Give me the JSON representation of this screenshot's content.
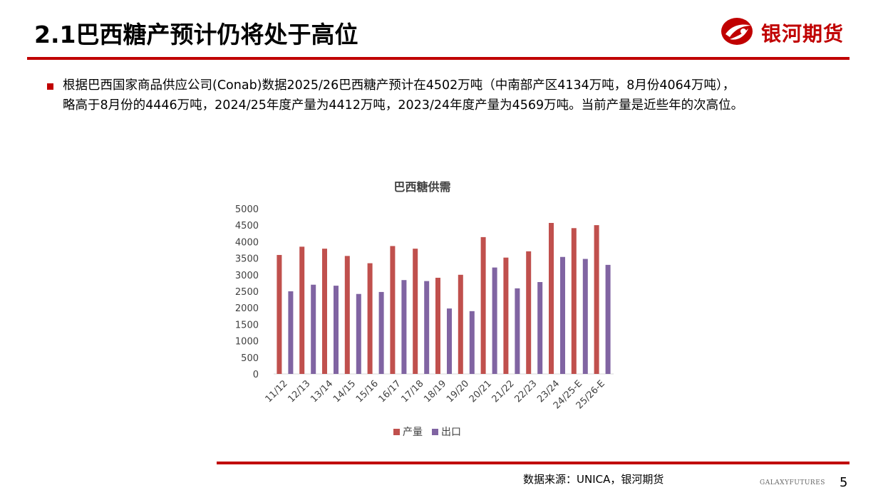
{
  "header": {
    "title": "2.1巴西糖产预计仍将处于高位",
    "logo_text": "银河期货"
  },
  "body": {
    "line1": "根据巴西国家商品供应公司(Conab)数据2025/26巴西糖产预计在4502万吨（中南部产区4134万吨，8月份4064万吨），",
    "line2": "略高于8月份的4446万吨，2024/25年度产量为4412万吨，2023/24年度产量为4569万吨。当前产量是近些年的次高位。"
  },
  "footer": {
    "source": "数据来源：UNICA，银河期货",
    "brand": "GALAXYFUTURES",
    "page": "5"
  },
  "colors": {
    "accent": "#c00000",
    "production": "#c0504d",
    "export": "#8064a2"
  },
  "chart_data": {
    "type": "bar",
    "title": "巴西糖供需",
    "categories": [
      "11/12",
      "12/13",
      "13/14",
      "14/15",
      "15/16",
      "16/17",
      "17/18",
      "18/19",
      "19/20",
      "20/21",
      "21/22",
      "22/23",
      "23/24",
      "24/25-E",
      "25/26-E"
    ],
    "series": [
      {
        "name": "产量",
        "values": [
          3600,
          3850,
          3790,
          3570,
          3350,
          3870,
          3790,
          2910,
          3000,
          4140,
          3520,
          3710,
          4569,
          4412,
          4502
        ]
      },
      {
        "name": "出口",
        "values": [
          2500,
          2700,
          2670,
          2420,
          2480,
          2840,
          2810,
          1980,
          1900,
          3220,
          2590,
          2780,
          3540,
          3480,
          3300
        ]
      }
    ],
    "yticks": [
      0,
      500,
      1000,
      1500,
      2000,
      2500,
      3000,
      3500,
      4000,
      4500,
      5000
    ],
    "ylim": [
      0,
      5000
    ],
    "legend_position": "bottom",
    "grid": false
  }
}
